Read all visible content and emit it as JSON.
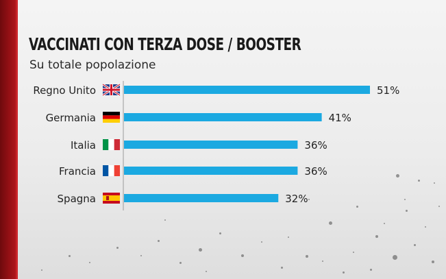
{
  "title": "VACCINATI CON TERZA DOSE / BOOSTER",
  "subtitle": "Su totale popolazione",
  "colors": {
    "bar": "#1ba9e1",
    "axis": "#9a9a9a",
    "text": "#222222",
    "brand_red": "#9b1116"
  },
  "chart_data": {
    "type": "bar",
    "orientation": "horizontal",
    "categories": [
      "Regno Unito",
      "Germania",
      "Italia",
      "Francia",
      "Spagna"
    ],
    "flags": [
      "flag-uk-icon",
      "flag-germany-icon",
      "flag-italy-icon",
      "flag-france-icon",
      "flag-spain-icon"
    ],
    "values": [
      51,
      41,
      36,
      36,
      32
    ],
    "value_labels": [
      "51%",
      "41%",
      "36%",
      "36%",
      "32%"
    ],
    "xlim": [
      0,
      51
    ],
    "grid": false,
    "legend": "none"
  }
}
